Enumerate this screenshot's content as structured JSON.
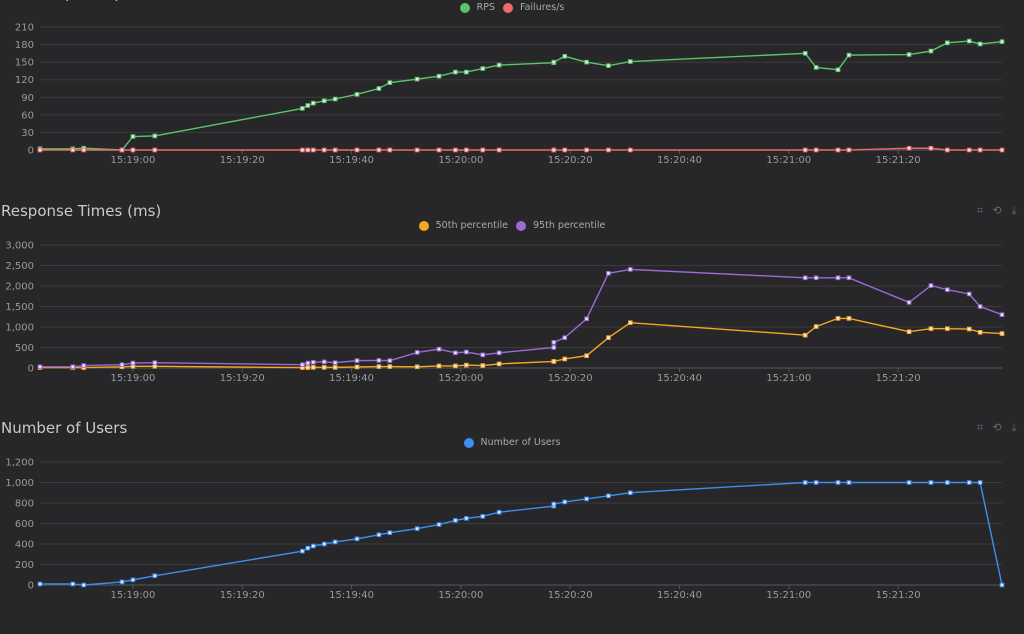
{
  "chart_data": [
    {
      "id": "rps",
      "type": "line",
      "title": "Total Requests per Second",
      "x": [
        "15:18:43",
        "15:18:49",
        "15:18:51",
        "15:18:58",
        "15:19:00",
        "15:19:04",
        "15:19:31",
        "15:19:32",
        "15:19:33",
        "15:19:35",
        "15:19:37",
        "15:19:41",
        "15:19:45",
        "15:19:47",
        "15:19:52",
        "15:19:56",
        "15:19:59",
        "15:20:01",
        "15:20:04",
        "15:20:07",
        "15:20:17",
        "15:20:17",
        "15:20:19",
        "15:20:23",
        "15:20:27",
        "15:20:31",
        "15:21:03",
        "15:21:05",
        "15:21:09",
        "15:21:11",
        "15:21:22",
        "15:21:26",
        "15:21:29",
        "15:21:33",
        "15:21:35",
        "15:21:39"
      ],
      "xlim": [
        "15:18:43",
        "15:21:39"
      ],
      "xticks": [
        "15:19:00",
        "15:19:20",
        "15:19:40",
        "15:20:00",
        "15:20:20",
        "15:20:40",
        "15:21:00",
        "15:21:20"
      ],
      "ylim": [
        0,
        210
      ],
      "yticks": [
        "0",
        "30",
        "60",
        "90",
        "120",
        "150",
        "180",
        "210"
      ],
      "grid": true,
      "legend": "top-center",
      "series": [
        {
          "name": "RPS",
          "color": "#5bc466",
          "values": [
            2,
            2,
            3,
            0,
            23,
            24,
            71,
            76,
            80,
            84,
            87,
            95,
            105,
            115,
            121,
            126,
            133,
            133,
            139,
            145,
            149,
            150,
            160,
            150,
            144,
            151,
            165,
            141,
            137,
            162,
            163,
            169,
            183,
            186,
            181,
            185
          ]
        },
        {
          "name": "Failures/s",
          "color": "#ee6a6a",
          "values": [
            0,
            0,
            0,
            0,
            0,
            0,
            0,
            0,
            0,
            0,
            0,
            0,
            0,
            0,
            0,
            0,
            0,
            0,
            0,
            0,
            0,
            0,
            0,
            0,
            0,
            0,
            0,
            0,
            0,
            0,
            3,
            3,
            0,
            0,
            0,
            0
          ]
        }
      ]
    },
    {
      "id": "response",
      "type": "line",
      "title": "Response Times (ms)",
      "x": [
        "15:18:43",
        "15:18:49",
        "15:18:51",
        "15:18:58",
        "15:19:00",
        "15:19:04",
        "15:19:31",
        "15:19:32",
        "15:19:33",
        "15:19:35",
        "15:19:37",
        "15:19:41",
        "15:19:45",
        "15:19:47",
        "15:19:52",
        "15:19:56",
        "15:19:59",
        "15:20:01",
        "15:20:04",
        "15:20:07",
        "15:20:17",
        "15:20:17",
        "15:20:19",
        "15:20:23",
        "15:20:27",
        "15:20:31",
        "15:21:03",
        "15:21:05",
        "15:21:09",
        "15:21:11",
        "15:21:22",
        "15:21:26",
        "15:21:29",
        "15:21:33",
        "15:21:35",
        "15:21:39"
      ],
      "xlim": [
        "15:18:43",
        "15:21:39"
      ],
      "xticks": [
        "15:19:00",
        "15:19:20",
        "15:19:40",
        "15:20:00",
        "15:20:20",
        "15:20:40",
        "15:21:00",
        "15:21:20"
      ],
      "ylim": [
        0,
        3000
      ],
      "yticks": [
        "0",
        "500",
        "1,000",
        "1,500",
        "2,000",
        "2,500",
        "3,000"
      ],
      "grid": true,
      "legend": "top-center",
      "series": [
        {
          "name": "50th percentile",
          "color": "#f5a623",
          "values": [
            10,
            10,
            10,
            30,
            40,
            40,
            10,
            10,
            15,
            15,
            15,
            25,
            35,
            35,
            30,
            50,
            50,
            70,
            60,
            100,
            160,
            160,
            220,
            300,
            740,
            1105,
            800,
            1010,
            1210,
            1210,
            885,
            960,
            960,
            950,
            870,
            840
          ]
        },
        {
          "name": "95th percentile",
          "color": "#9a6ad6",
          "values": [
            30,
            30,
            60,
            80,
            120,
            130,
            80,
            120,
            140,
            150,
            130,
            180,
            185,
            180,
            380,
            460,
            370,
            390,
            320,
            370,
            500,
            626,
            740,
            1200,
            2310,
            2405,
            2200,
            2200,
            2200,
            2200,
            1600,
            2010,
            1910,
            1805,
            1500,
            1300
          ]
        }
      ]
    },
    {
      "id": "users",
      "type": "line",
      "title": "Number of Users",
      "x": [
        "15:18:43",
        "15:18:49",
        "15:18:51",
        "15:18:58",
        "15:19:00",
        "15:19:04",
        "15:19:31",
        "15:19:32",
        "15:19:33",
        "15:19:35",
        "15:19:37",
        "15:19:41",
        "15:19:45",
        "15:19:47",
        "15:19:52",
        "15:19:56",
        "15:19:59",
        "15:20:01",
        "15:20:04",
        "15:20:07",
        "15:20:17",
        "15:20:17",
        "15:20:19",
        "15:20:23",
        "15:20:27",
        "15:20:31",
        "15:21:03",
        "15:21:05",
        "15:21:09",
        "15:21:11",
        "15:21:22",
        "15:21:26",
        "15:21:29",
        "15:21:33",
        "15:21:35",
        "15:21:39"
      ],
      "xlim": [
        "15:18:43",
        "15:21:39"
      ],
      "xticks": [
        "15:19:00",
        "15:19:20",
        "15:19:40",
        "15:20:00",
        "15:20:20",
        "15:20:40",
        "15:21:00",
        "15:21:20"
      ],
      "ylim": [
        0,
        1200
      ],
      "yticks": [
        "0",
        "200",
        "400",
        "600",
        "800",
        "1,000",
        "1,200"
      ],
      "grid": true,
      "legend": "top-center",
      "series": [
        {
          "name": "Number of Users",
          "color": "#3d8ef0",
          "values": [
            10,
            10,
            0,
            30,
            50,
            90,
            330,
            360,
            380,
            400,
            420,
            450,
            490,
            510,
            550,
            590,
            630,
            650,
            670,
            710,
            770,
            790,
            810,
            840,
            870,
            900,
            1000,
            1000,
            1000,
            1000,
            1000,
            1000,
            1000,
            1000,
            1000,
            0
          ]
        }
      ]
    }
  ],
  "toolbar_icons": [
    "zoom-select-icon",
    "zoom-reset-icon",
    "download-icon"
  ]
}
